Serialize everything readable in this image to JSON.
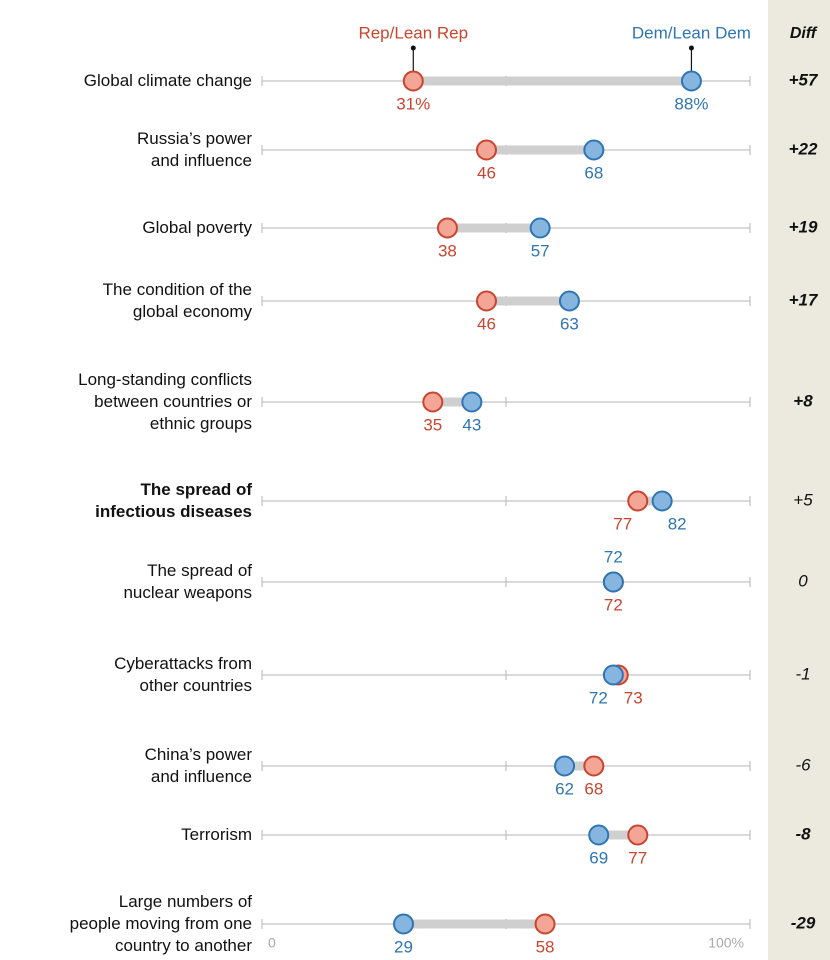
{
  "chart_data": {
    "type": "dot",
    "diff_title": "Diff",
    "categories": [
      "Global climate change",
      "Russia’s power\nand influence",
      "Global poverty",
      "The condition of the\nglobal economy",
      "Long-standing conflicts\nbetween countries or\nethnic groups",
      "The spread of\ninfectious diseases",
      "The spread of\nnuclear weapons",
      "Cyberattacks from\nother countries",
      "China’s power\nand influence",
      "Terrorism",
      "Large numbers of\npeople moving from one\ncountry to another"
    ],
    "bold_categories": [
      5
    ],
    "series": [
      {
        "name": "Rep/Lean Rep",
        "color": "#c8452f",
        "fill": "#f3a596",
        "values": [
          31,
          46,
          38,
          46,
          35,
          77,
          72,
          73,
          68,
          77,
          58
        ],
        "value_labels": [
          "31%",
          "46",
          "38",
          "46",
          "35",
          "77",
          "72",
          "73",
          "68",
          "77",
          "58"
        ]
      },
      {
        "name": "Dem/Lean Dem",
        "color": "#2e75b3",
        "fill": "#86b6e0",
        "values": [
          88,
          68,
          57,
          63,
          43,
          82,
          72,
          72,
          62,
          69,
          29
        ],
        "value_labels": [
          "88%",
          "68",
          "57",
          "63",
          "43",
          "82",
          "72",
          "72",
          "62",
          "69",
          "29"
        ]
      }
    ],
    "differences": {
      "values": [
        57,
        22,
        19,
        17,
        8,
        5,
        0,
        -1,
        -6,
        -8,
        -29
      ],
      "value_labels": [
        "+57",
        "+22",
        "+19",
        "+17",
        "+8",
        "+5",
        "0",
        "-1",
        "-6",
        "-8",
        "-29"
      ],
      "bold": [
        true,
        true,
        true,
        true,
        true,
        false,
        false,
        false,
        false,
        true,
        true
      ]
    },
    "xlim": [
      0,
      100
    ],
    "xticks": [
      0,
      {
        "value": 100,
        "label": "100%"
      }
    ],
    "minor_xticks": [
      50
    ]
  }
}
